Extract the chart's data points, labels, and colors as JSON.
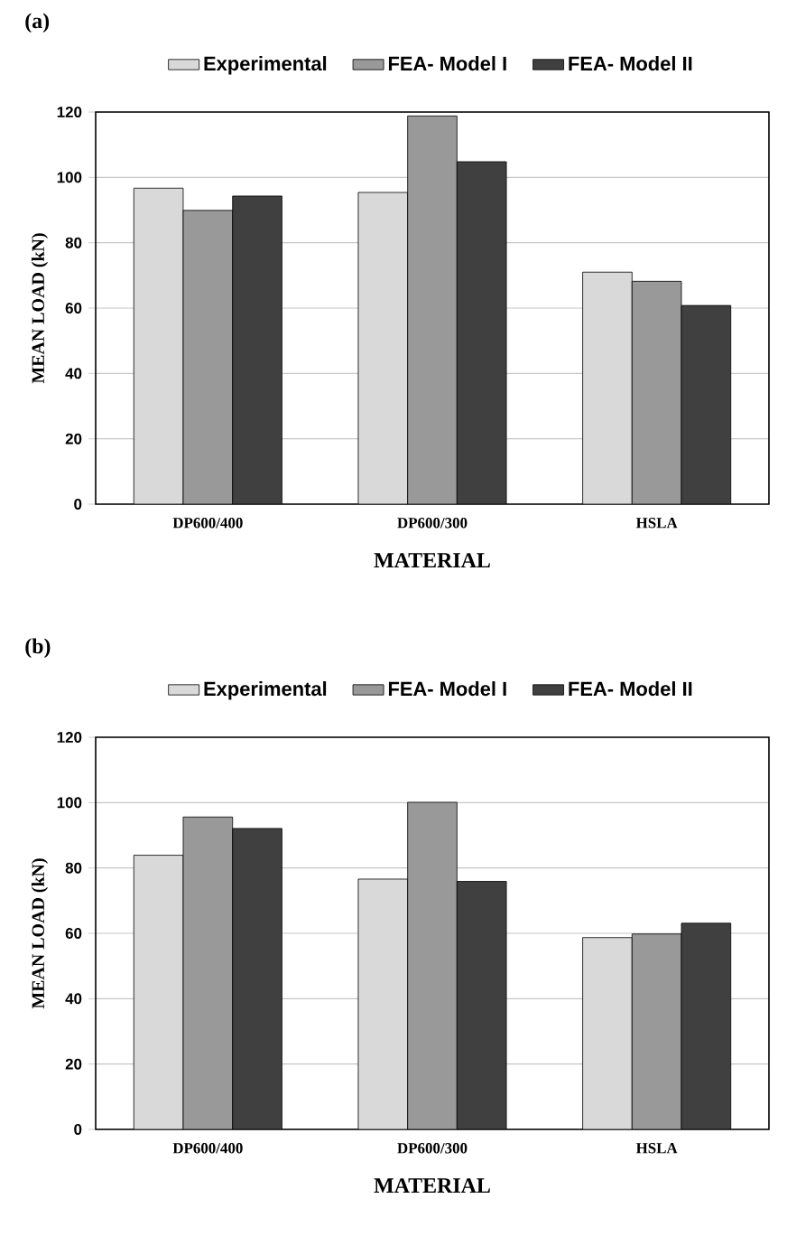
{
  "chart_data": [
    {
      "type": "bar",
      "title": "(a)",
      "categories": [
        "DP600/400",
        "DP600/300",
        "HSLA"
      ],
      "xlabel": "MATERIAL",
      "ylabel": "MEAN LOAD (kN)",
      "ylim": [
        0,
        120
      ],
      "yticks": [
        0,
        20,
        40,
        60,
        80,
        100,
        120
      ],
      "grid": "y",
      "legend": "top",
      "series": [
        {
          "name": "Experimental",
          "color": "#d9d9d9",
          "values": [
            96.7,
            95.4,
            71.0
          ]
        },
        {
          "name": "FEA- Model I",
          "color": "#999999",
          "values": [
            89.9,
            118.8,
            68.2
          ]
        },
        {
          "name": "FEA- Model II",
          "color": "#404040",
          "values": [
            94.3,
            104.8,
            60.8
          ]
        }
      ]
    },
    {
      "type": "bar",
      "title": "(b)",
      "categories": [
        "DP600/400",
        "DP600/300",
        "HSLA"
      ],
      "xlabel": "MATERIAL",
      "ylabel": "MEAN LOAD (kN)",
      "ylim": [
        0,
        120
      ],
      "yticks": [
        0,
        20,
        40,
        60,
        80,
        100,
        120
      ],
      "grid": "y",
      "legend": "top",
      "series": [
        {
          "name": "Experimental",
          "color": "#d9d9d9",
          "values": [
            83.9,
            76.6,
            58.7
          ]
        },
        {
          "name": "FEA- Model I",
          "color": "#999999",
          "values": [
            95.6,
            100.1,
            59.8
          ]
        },
        {
          "name": "FEA- Model II",
          "color": "#404040",
          "values": [
            92.1,
            75.9,
            63.1
          ]
        }
      ]
    }
  ]
}
